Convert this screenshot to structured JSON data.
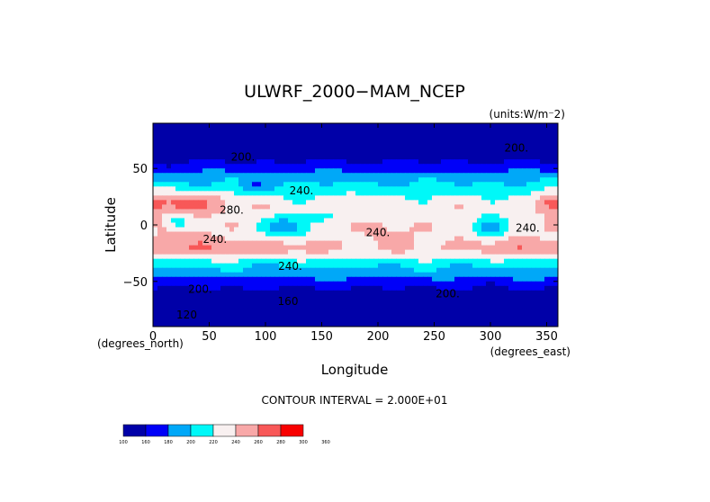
{
  "chart_data": {
    "type": "heatmap",
    "title": "ULWRF_2000−MAM_NCEP",
    "units_label": "(units:W/m⁻2)",
    "xlabel": "Longitude",
    "ylabel": "Latitude",
    "x_unit_note": "(degrees_east)",
    "y_unit_note": "(degrees_north)",
    "xlim": [
      0,
      360
    ],
    "ylim": [
      -90,
      90
    ],
    "x_ticks": [
      0,
      50,
      100,
      150,
      200,
      250,
      300,
      350
    ],
    "y_ticks": [
      -50,
      0,
      50
    ],
    "y_tick_labels": [
      "−50",
      "0",
      "50"
    ],
    "contour_interval_text": "CONTOUR INTERVAL = 2.000E+01",
    "contour_labels": [
      {
        "lon": 80,
        "lat": 57,
        "text": "200."
      },
      {
        "lon": 323,
        "lat": 65,
        "text": "200."
      },
      {
        "lon": 132,
        "lat": 27,
        "text": "240."
      },
      {
        "lon": 70,
        "lat": 10,
        "text": "280."
      },
      {
        "lon": 200,
        "lat": -10,
        "text": "240."
      },
      {
        "lon": 55,
        "lat": -16,
        "text": "240."
      },
      {
        "lon": 333,
        "lat": -6,
        "text": "240."
      },
      {
        "lon": 122,
        "lat": -40,
        "text": "240."
      },
      {
        "lon": 42,
        "lat": -60,
        "text": "200."
      },
      {
        "lon": 262,
        "lat": -64,
        "text": "200."
      },
      {
        "lon": 120,
        "lat": -71,
        "text": "160"
      },
      {
        "lon": 30,
        "lat": -83,
        "text": "120"
      }
    ],
    "colorbar": {
      "levels": [
        "100",
        "160",
        "180",
        "200",
        "220",
        "240",
        "260",
        "280",
        "300",
        "360"
      ],
      "colors": [
        "#0000a8",
        "#0000f8",
        "#00a8f8",
        "#00f8f8",
        "#f8f0f0",
        "#f8a8a8",
        "#f85858",
        "#f80000"
      ]
    },
    "field": {
      "description_levels_wm2": [
        100,
        160,
        180,
        200,
        220,
        240,
        260,
        280,
        300,
        360
      ]
    }
  }
}
